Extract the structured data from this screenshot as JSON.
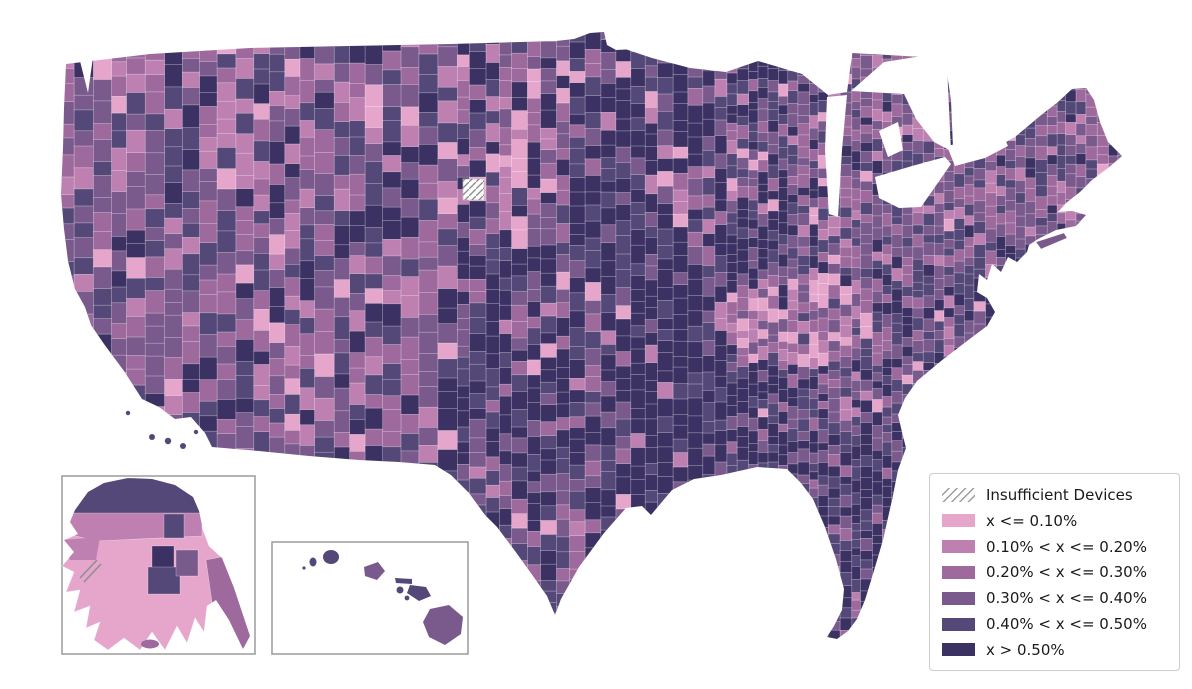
{
  "figure": {
    "background": "#ffffff"
  },
  "legend": {
    "insufficient_label": "Insufficient Devices",
    "insufficient_fill": "#ffffff",
    "insufficient_hatch_color": "#8f8f8f",
    "classes": [
      {
        "label": "x <= 0.10%",
        "color": "#e6a6cc"
      },
      {
        "label": "0.10% < x <= 0.20%",
        "color": "#bd80b1"
      },
      {
        "label": "0.20% < x <= 0.30%",
        "color": "#9e6a9d"
      },
      {
        "label": "0.30% < x <= 0.40%",
        "color": "#7a5a8c"
      },
      {
        "label": "0.40% < x <= 0.50%",
        "color": "#544878"
      },
      {
        "label": "x > 0.50%",
        "color": "#3b3163"
      }
    ]
  },
  "map": {
    "water_color": "#ffffff",
    "county_border_color": "rgba(255,255,255,0.5)",
    "inset_border_color": "#9b9b9b"
  }
}
